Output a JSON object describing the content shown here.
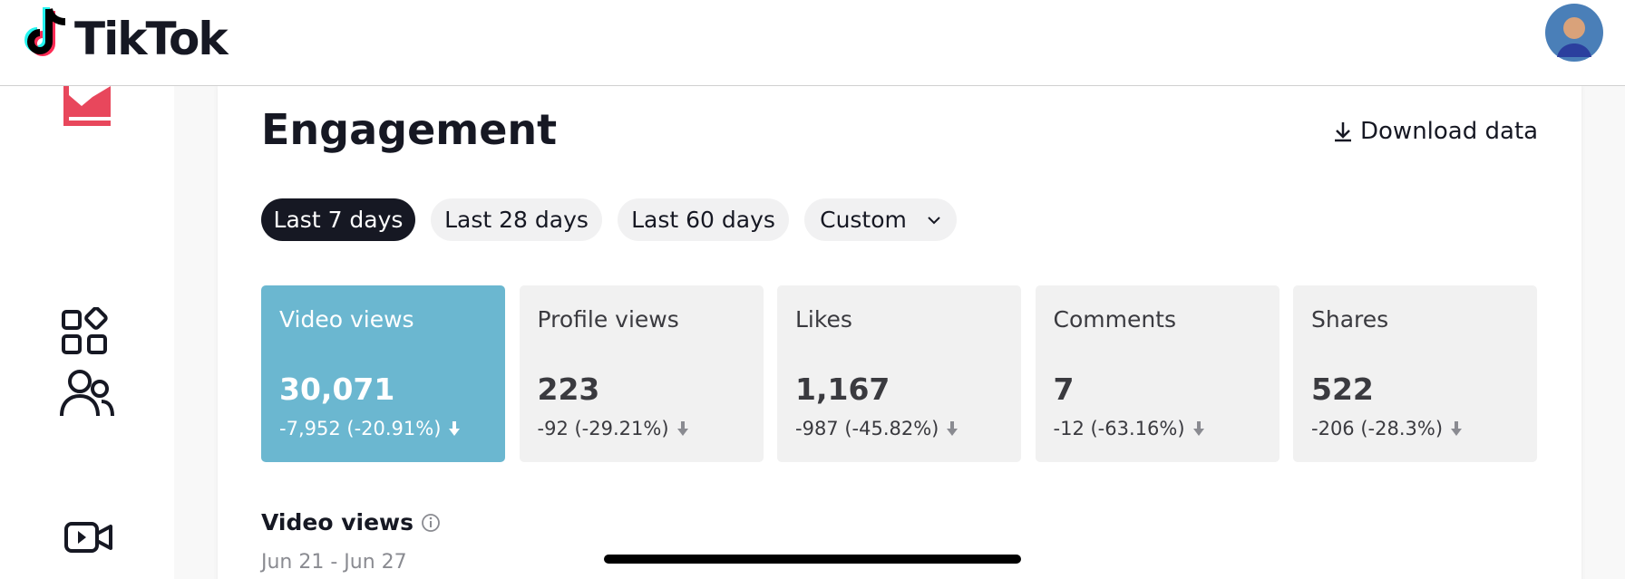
{
  "header": {
    "logo": "TikTok"
  },
  "section": {
    "title": "Engagement",
    "download": "Download data"
  },
  "filters": [
    "Last 7 days",
    "Last 28 days",
    "Last 60 days",
    "Custom"
  ],
  "metrics": [
    {
      "label": "Video views",
      "value": "30,071",
      "change": "-7,952 (-20.91%)"
    },
    {
      "label": "Profile views",
      "value": "223",
      "change": "-92 (-29.21%)"
    },
    {
      "label": "Likes",
      "value": "1,167",
      "change": "-987 (-45.82%)"
    },
    {
      "label": "Comments",
      "value": "7",
      "change": "-12 (-63.16%)"
    },
    {
      "label": "Shares",
      "value": "522",
      "change": "-206 (-28.3%)"
    }
  ],
  "chart_section": {
    "title": "Video views",
    "date_range": "Jun 21 - Jun 27"
  }
}
